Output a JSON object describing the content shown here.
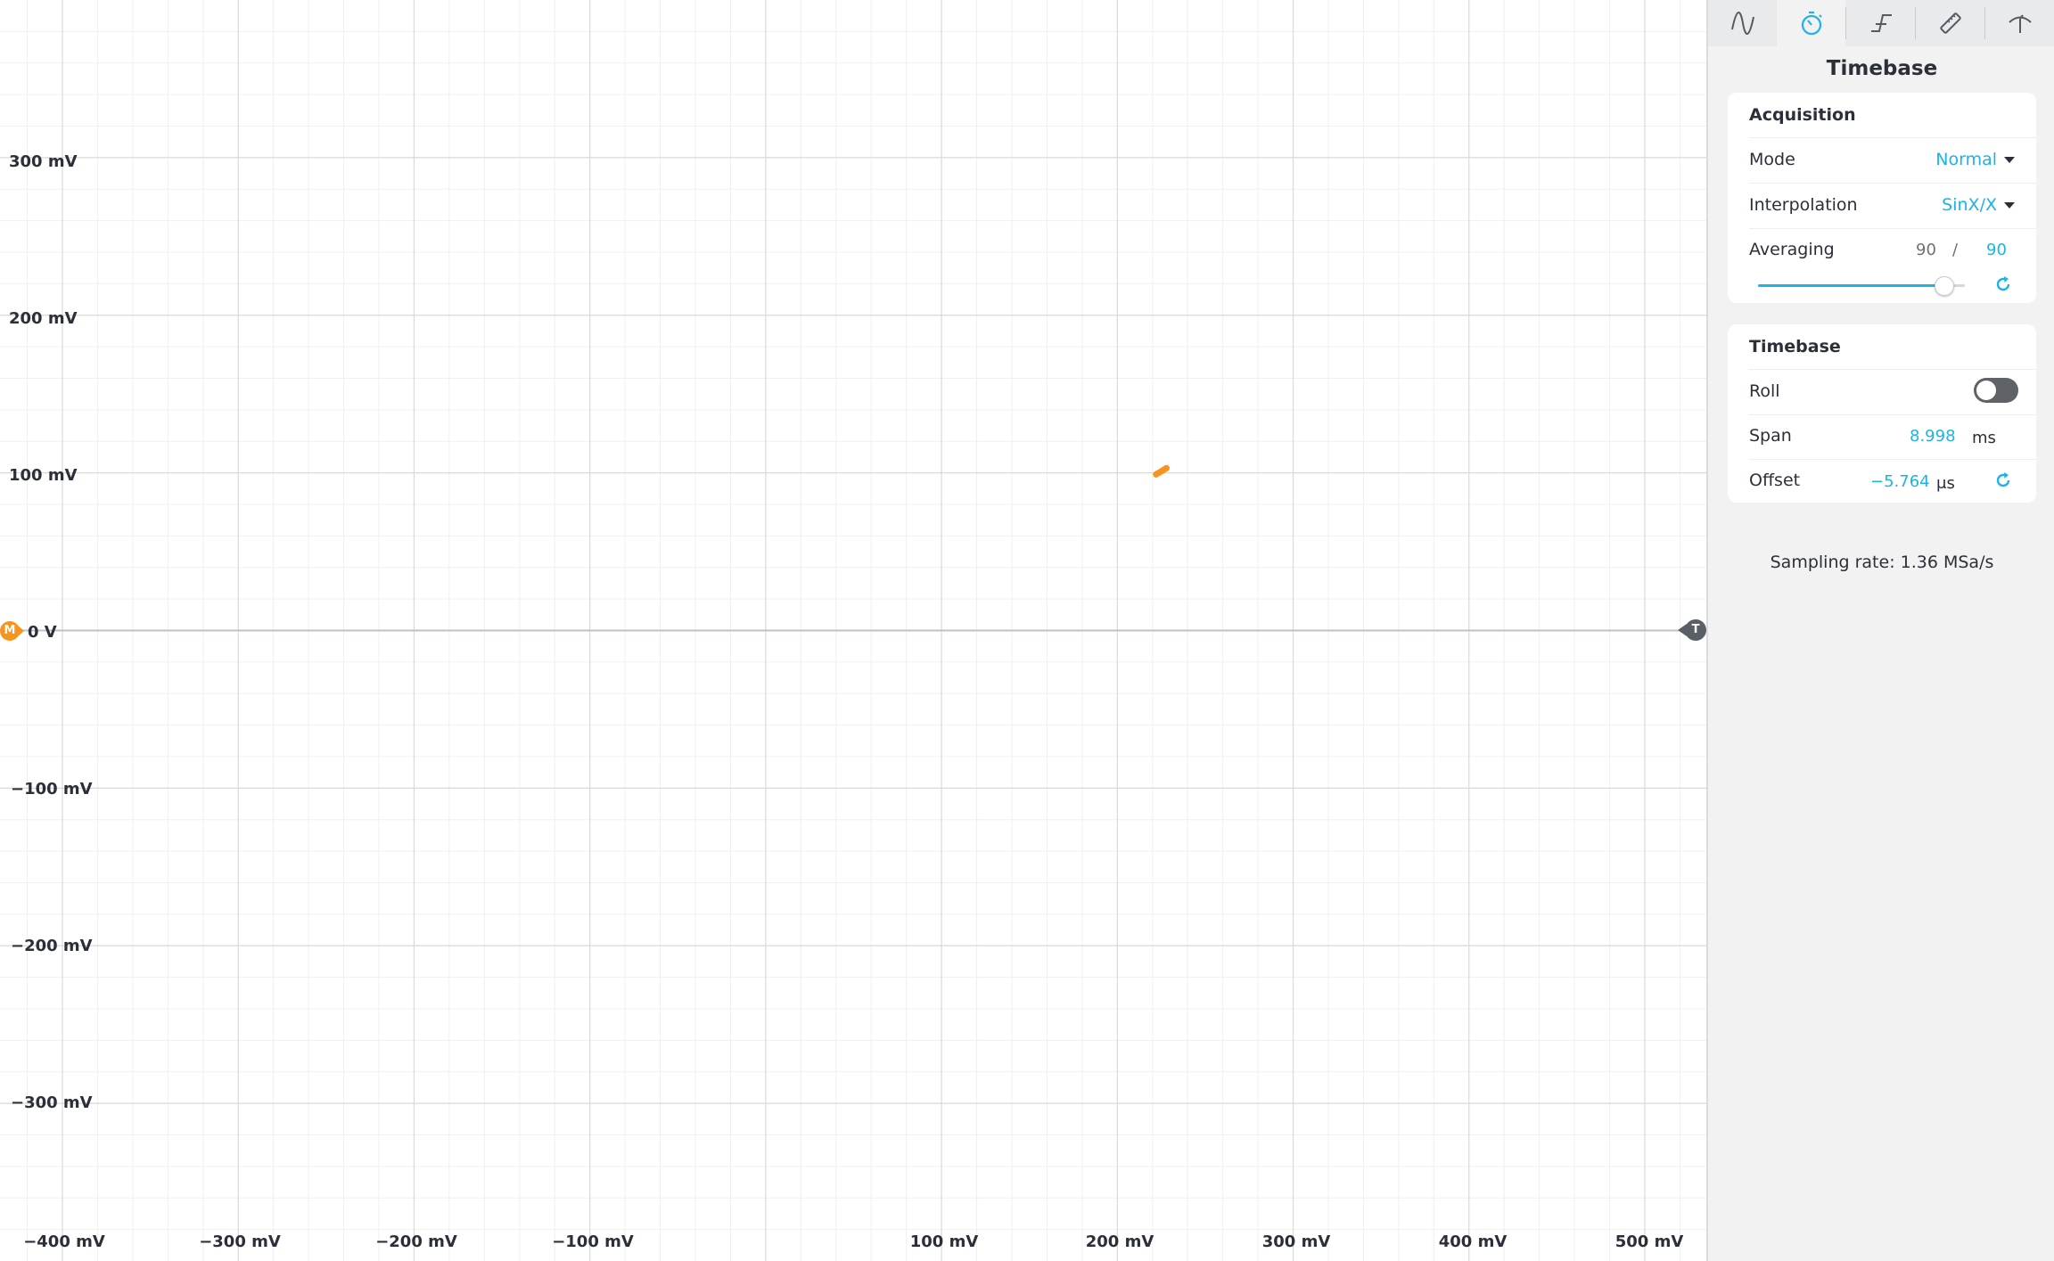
{
  "plot": {
    "y_axis_labels": [
      "300 mV",
      "200 mV",
      "100 mV",
      "0 V",
      "−100 mV",
      "−200 mV",
      "−300 mV"
    ],
    "x_axis_labels": [
      "−400 mV",
      "−300 mV",
      "−200 mV",
      "−100 mV",
      "100 mV",
      "200 mV",
      "300 mV",
      "400 mV",
      "500 mV"
    ],
    "ground_marker": "M",
    "trigger_marker": "T",
    "trace_color": "#f7941d"
  },
  "chart_data": {
    "type": "scatter",
    "title": "",
    "xlabel": "",
    "ylabel": "",
    "xlim": [
      -435,
      535
    ],
    "ylim": [
      -400,
      400
    ],
    "series": [
      {
        "points": [
          [
            222,
            99
          ],
          [
            225,
            101
          ],
          [
            228,
            103
          ]
        ]
      }
    ]
  },
  "tabs": [
    {
      "icon": "sine-wave-icon",
      "active": false
    },
    {
      "icon": "stopwatch-icon",
      "active": true
    },
    {
      "icon": "trigger-edge-icon",
      "active": false
    },
    {
      "icon": "ruler-icon",
      "active": false
    },
    {
      "icon": "probe-icon",
      "active": false
    }
  ],
  "panel": {
    "title": "Timebase",
    "acquisition": {
      "heading": "Acquisition",
      "mode_label": "Mode",
      "mode_value": "Normal",
      "interpolation_label": "Interpolation",
      "interpolation_value": "SinX/X",
      "averaging_label": "Averaging",
      "averaging_current": "90",
      "averaging_separator": "/",
      "averaging_target": "90",
      "averaging_slider_fraction": 0.9
    },
    "timebase": {
      "heading": "Timebase",
      "roll_label": "Roll",
      "roll_on": false,
      "span_label": "Span",
      "span_value": "8.998",
      "span_unit": "ms",
      "offset_label": "Offset",
      "offset_value": "−5.764",
      "offset_unit": "μs"
    },
    "sampling_rate": "Sampling rate: 1.36 MSa/s"
  },
  "colors": {
    "accent": "#1db3e6",
    "trace": "#f7941d",
    "grid_major": "#d9d9d9",
    "grid_minor": "#f0f0f0"
  }
}
